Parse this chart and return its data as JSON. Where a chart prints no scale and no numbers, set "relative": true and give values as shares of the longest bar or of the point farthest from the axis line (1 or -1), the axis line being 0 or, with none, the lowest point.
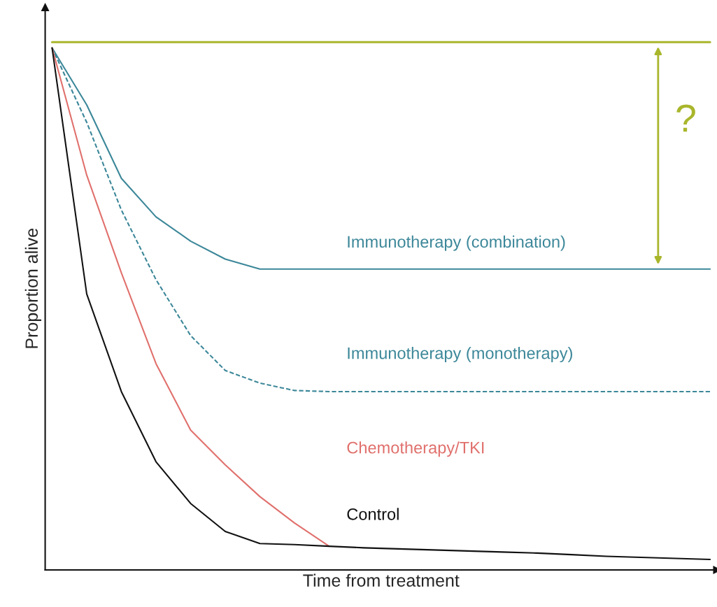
{
  "chart_data": {
    "type": "line",
    "relative": true,
    "xlabel": "Time from treatment",
    "ylabel": "Proportion alive",
    "annotations": [
      "?"
    ],
    "marker": "none",
    "legend": false,
    "categories": [
      null,
      null,
      null,
      null,
      null,
      null,
      null,
      null,
      null,
      null,
      null,
      null,
      null,
      null,
      null,
      null,
      null,
      null,
      null,
      null
    ],
    "series": [
      {
        "color": "#a9b62b",
        "values": [
          1,
          1,
          1,
          1,
          1,
          1,
          1,
          1,
          1,
          1,
          1,
          1,
          1,
          1,
          1,
          1,
          1,
          1,
          1,
          1
        ]
      },
      {
        "name": "Immunotherapy (combination)",
        "color": "#3c8799",
        "values": [
          0.989,
          0.881,
          0.742,
          0.669,
          0.623,
          0.589,
          0.57,
          0.57,
          0.57,
          0.57,
          0.57,
          0.57,
          0.57,
          0.57,
          0.57,
          0.57,
          0.57,
          0.57,
          0.57,
          0.57
        ]
      },
      {
        "name": "Immunotherapy (monotherapy)",
        "color": "#3c8799",
        "line_style": "dashed",
        "values": [
          0.989,
          0.848,
          0.682,
          0.55,
          0.444,
          0.378,
          0.354,
          0.34,
          0.338,
          0.338,
          0.338,
          0.338,
          0.338,
          0.338,
          0.338,
          0.338,
          0.338,
          0.338,
          0.338,
          0.338
        ]
      },
      {
        "name": "Chemotherapy/TKI",
        "color": "#e0706c",
        "values": [
          0.989,
          0.748,
          0.563,
          0.391,
          0.265,
          0.199,
          0.139,
          0.089,
          0.045,
          null,
          null,
          null,
          null,
          null,
          null,
          null,
          null,
          null,
          null,
          null
        ]
      },
      {
        "name": "Control",
        "color": "#111111",
        "values": [
          0.989,
          0.523,
          0.338,
          0.205,
          0.126,
          0.073,
          0.05,
          0.048,
          0.045,
          0.042,
          0.04,
          0.038,
          0.036,
          0.034,
          0.032,
          0.029,
          0.026,
          0.024,
          0.022,
          0.02
        ]
      }
    ]
  }
}
